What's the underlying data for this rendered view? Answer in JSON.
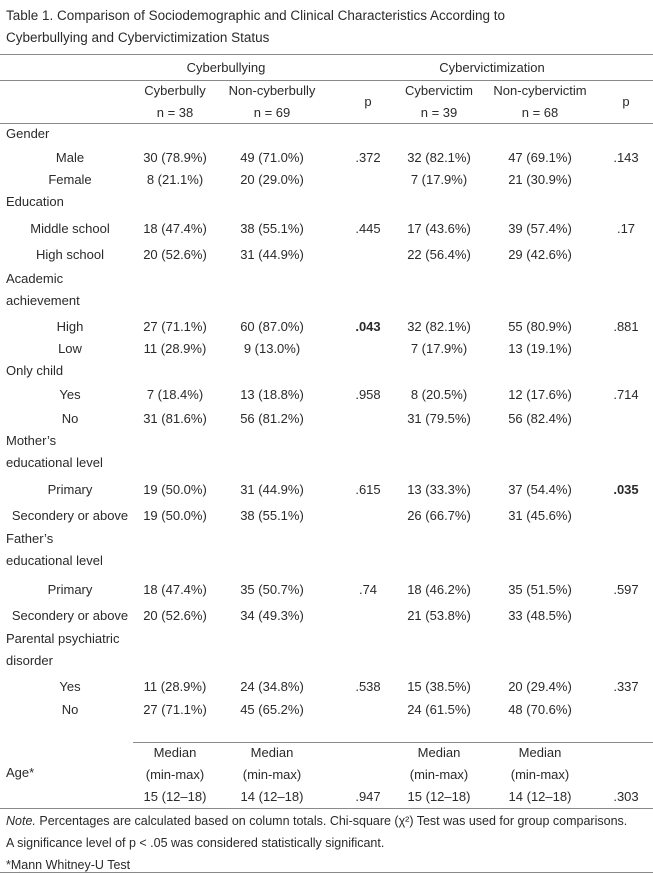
{
  "title": {
    "line1": "Table 1. Comparison of Sociodemographic and Clinical Characteristics According to",
    "line2": "Cyberbullying and Cybervictimization Status"
  },
  "groups": {
    "cyberbullying": "Cyberbullying",
    "cybervictimization": "Cybervictimization"
  },
  "columns": {
    "c1": {
      "name": "Cyberbully",
      "n": "n = 38"
    },
    "c2": {
      "name": "Non-cyberbully",
      "n": "n = 69"
    },
    "p1": "p",
    "c3": {
      "name": "Cybervictim",
      "n": "n = 39"
    },
    "c4": {
      "name": "Non-cybervictim",
      "n": "n = 68"
    },
    "p2": "p"
  },
  "rows": [
    {
      "type": "category",
      "label": "Gender"
    },
    {
      "type": "sub",
      "label": "Male",
      "c1": "30 (78.9%)",
      "c2": "49 (71.0%)",
      "p1": ".372",
      "c3": "32 (82.1%)",
      "c4": "47 (69.1%)",
      "p2": ".143"
    },
    {
      "type": "sub",
      "label": "Female",
      "c1": "8 (21.1%)",
      "c2": "20 (29.0%)",
      "p1": "",
      "c3": "7 (17.9%)",
      "c4": "21 (30.9%)",
      "p2": ""
    },
    {
      "type": "category",
      "label": "Education"
    },
    {
      "type": "sub",
      "label": "Middle school",
      "c1": "18 (47.4%)",
      "c2": "38 (55.1%)",
      "p1": ".445",
      "c3": "17 (43.6%)",
      "c4": "39 (57.4%)",
      "p2": ".17"
    },
    {
      "type": "sub",
      "label": "High school",
      "c1": "20 (52.6%)",
      "c2": "31 (44.9%)",
      "p1": "",
      "c3": "22 (56.4%)",
      "c4": "29 (42.6%)",
      "p2": ""
    },
    {
      "type": "category",
      "label": "Academic achievement",
      "lines": [
        "Academic",
        "achievement"
      ]
    },
    {
      "type": "sub",
      "label": "High",
      "c1": "27 (71.1%)",
      "c2": "60 (87.0%)",
      "p1": ".043",
      "p1_significant": true,
      "c3": "32 (82.1%)",
      "c4": "55 (80.9%)",
      "p2": ".881"
    },
    {
      "type": "sub",
      "label": "Low",
      "c1": "11 (28.9%)",
      "c2": "9 (13.0%)",
      "p1": "",
      "c3": "7 (17.9%)",
      "c4": "13 (19.1%)",
      "p2": ""
    },
    {
      "type": "category",
      "label": "Only child"
    },
    {
      "type": "sub",
      "label": "Yes",
      "c1": "7 (18.4%)",
      "c2": "13 (18.8%)",
      "p1": ".958",
      "c3": "8 (20.5%)",
      "c4": "12 (17.6%)",
      "p2": ".714"
    },
    {
      "type": "sub",
      "label": "No",
      "c1": "31 (81.6%)",
      "c2": "56 (81.2%)",
      "p1": "",
      "c3": "31 (79.5%)",
      "c4": "56 (82.4%)",
      "p2": ""
    },
    {
      "type": "category",
      "label": "Mother's educational level",
      "lines": [
        "Mother’s",
        "educational level"
      ]
    },
    {
      "type": "sub",
      "label": "Primary",
      "c1": "19 (50.0%)",
      "c2": "31 (44.9%)",
      "p1": ".615",
      "c3": "13 (33.3%)",
      "c4": "37 (54.4%)",
      "p2": ".035",
      "p2_significant": true
    },
    {
      "type": "sub",
      "label": "Secondery or above",
      "c1": "19 (50.0%)",
      "c2": "38 (55.1%)",
      "p1": "",
      "c3": "26 (66.7%)",
      "c4": "31 (45.6%)",
      "p2": ""
    },
    {
      "type": "category",
      "label": "Father's educational level",
      "lines": [
        "Father’s",
        "educational level"
      ]
    },
    {
      "type": "sub",
      "label": "Primary",
      "c1": "18 (47.4%)",
      "c2": "35 (50.7%)",
      "p1": ".74",
      "c3": "18 (46.2%)",
      "c4": "35 (51.5%)",
      "p2": ".597"
    },
    {
      "type": "sub",
      "label": "Secondery or above",
      "c1": "20 (52.6%)",
      "c2": "34 (49.3%)",
      "p1": "",
      "c3": "21 (53.8%)",
      "c4": "33 (48.5%)",
      "p2": ""
    },
    {
      "type": "category",
      "label": "Parental psychiatric disorder",
      "lines": [
        "Parental psychiatric",
        "disorder"
      ]
    },
    {
      "type": "sub",
      "label": "Yes",
      "c1": "11 (28.9%)",
      "c2": "24 (34.8%)",
      "p1": ".538",
      "c3": "15 (38.5%)",
      "c4": "20 (29.4%)",
      "p2": ".337"
    },
    {
      "type": "sub",
      "label": "No",
      "c1": "27 (71.1%)",
      "c2": "45 (65.2%)",
      "p1": "",
      "c3": "24 (61.5%)",
      "c4": "48 (70.6%)",
      "p2": ""
    }
  ],
  "age": {
    "label": "Age*",
    "stat_line1": "Median",
    "stat_line2": "(min-max)",
    "c1": "15 (12–18)",
    "c2": "14 (12–18)",
    "p1": ".947",
    "c3": "15 (12–18)",
    "c4": "14 (12–18)",
    "p2": ".303"
  },
  "notes": {
    "note_label": "Note.",
    "line1": " Percentages are calculated based on column totals. Chi-square (χ²) Test was used for group comparisons.",
    "line2": "A significance level of p < .05 was considered statistically significant.",
    "line3": "*Mann Whitney-U Test"
  }
}
